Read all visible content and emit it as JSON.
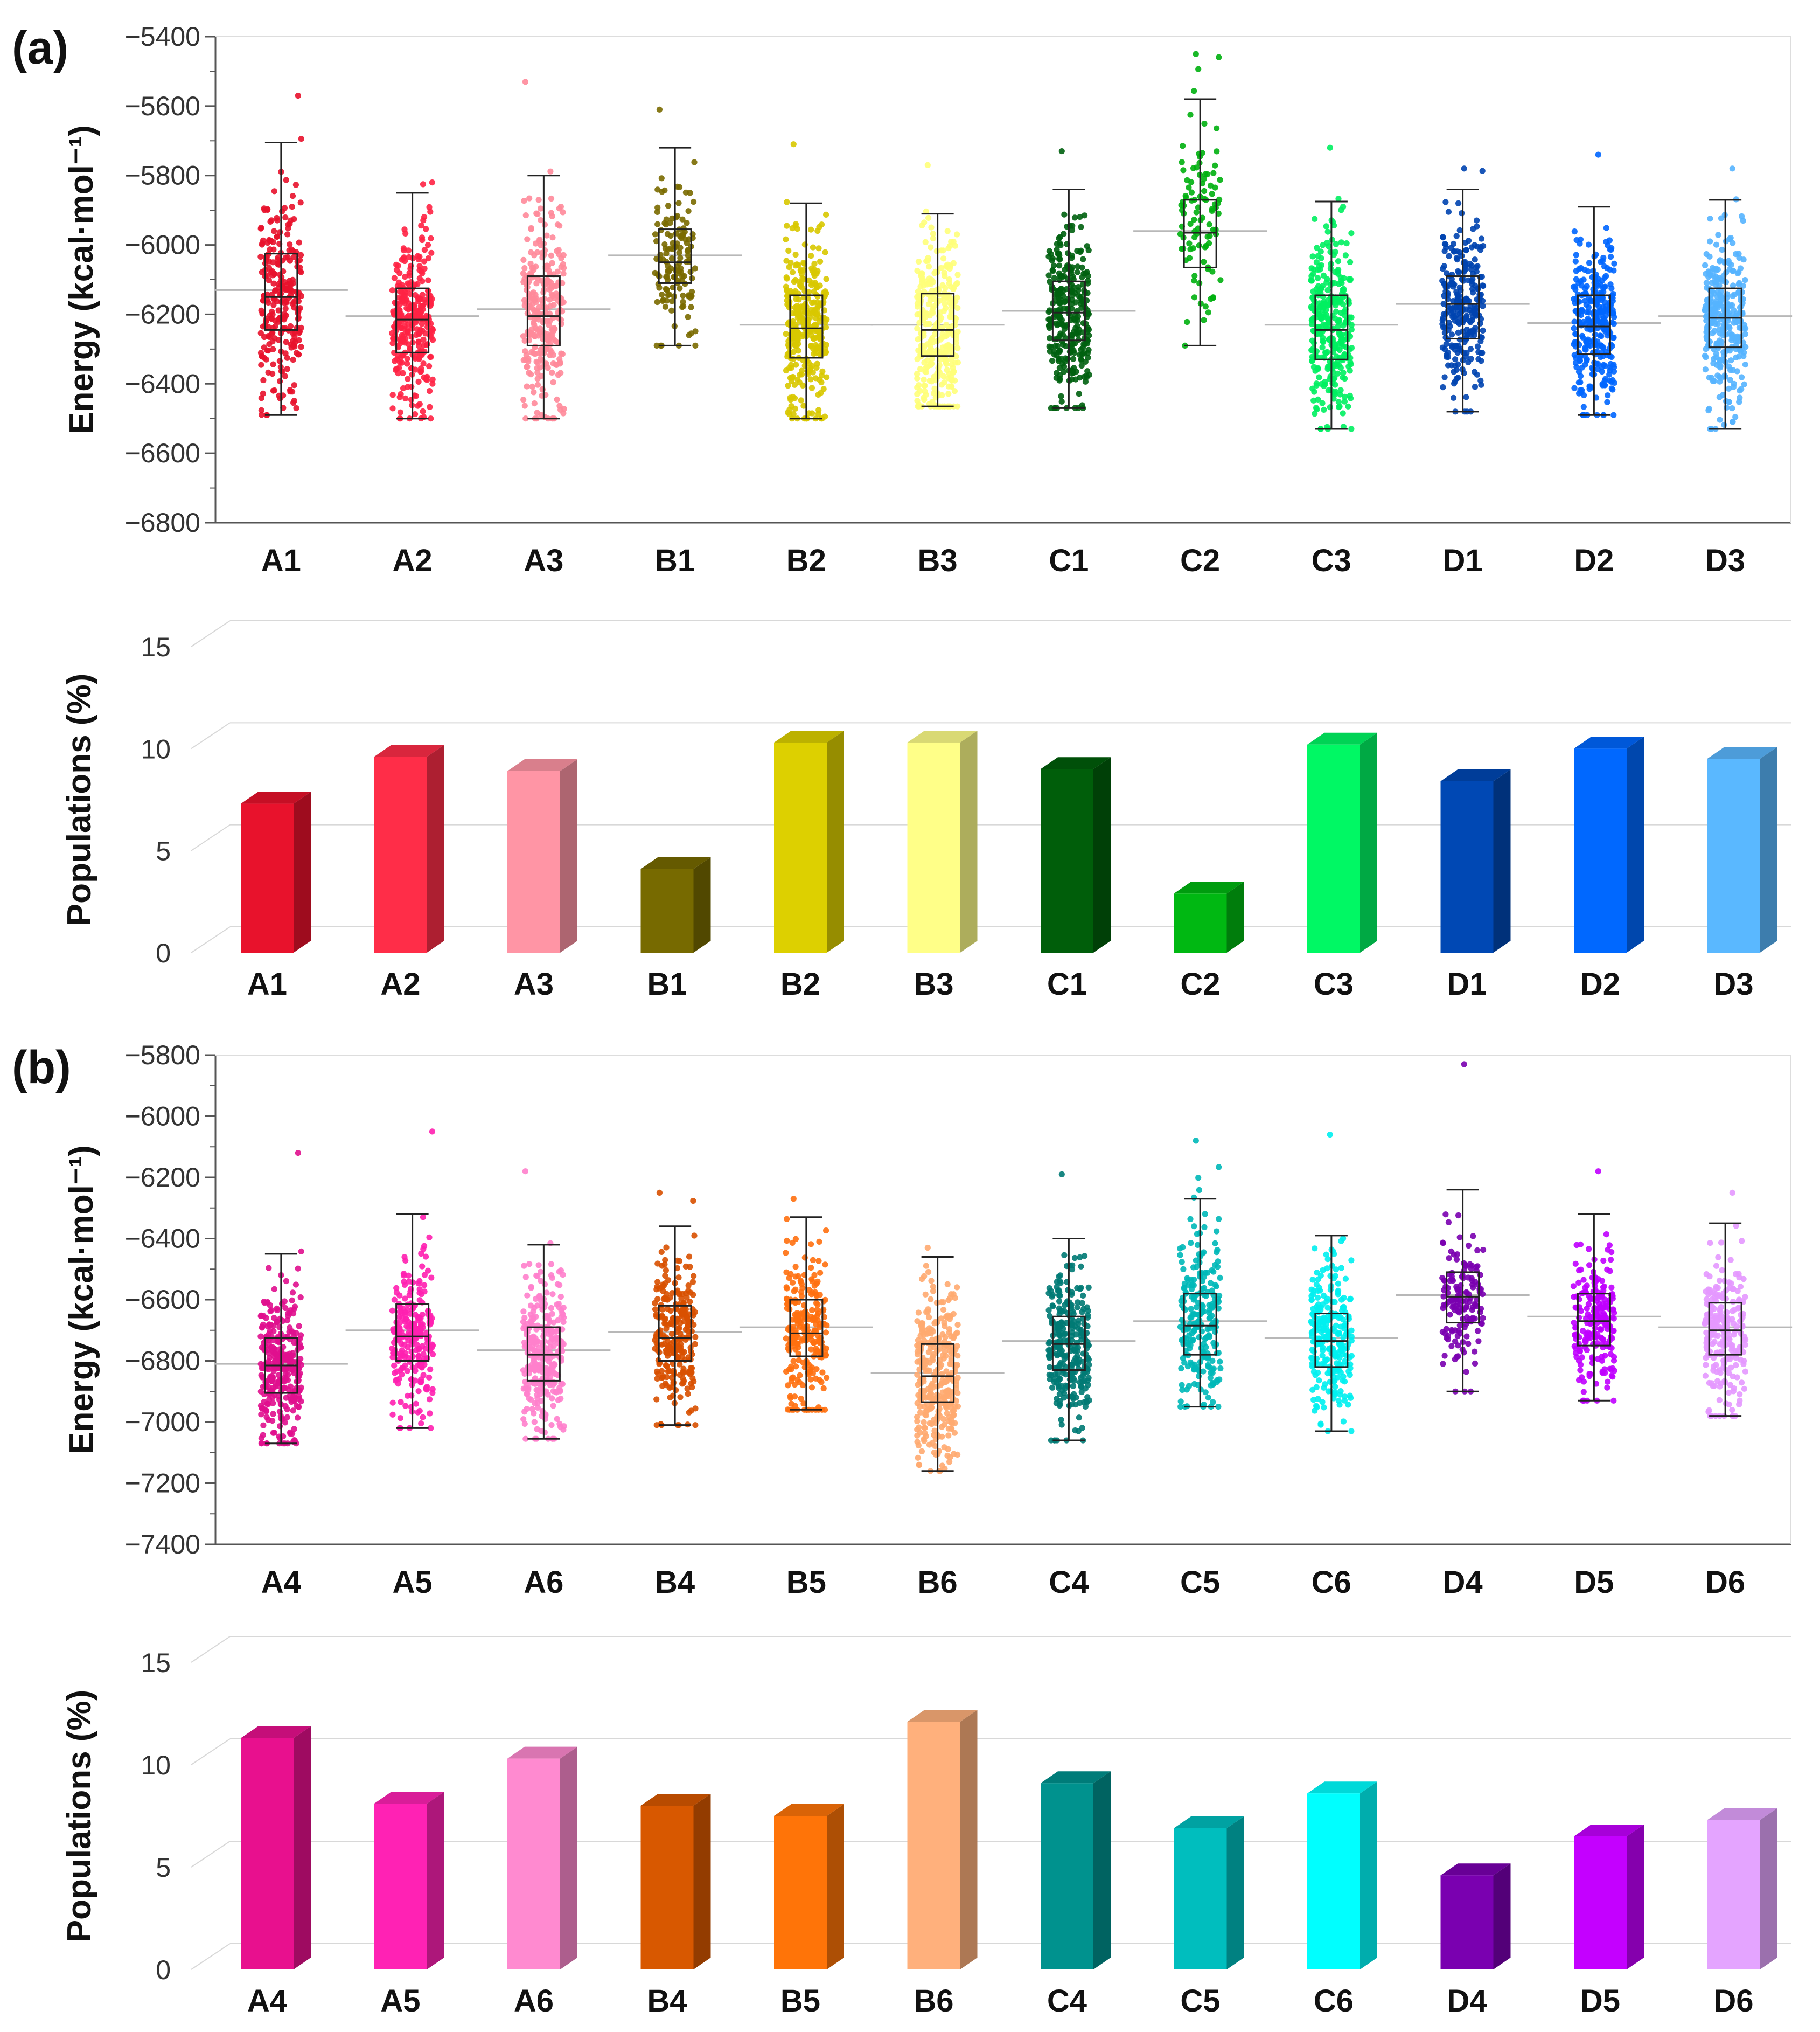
{
  "figure": {
    "panels": [
      {
        "label": "(a)"
      },
      {
        "label": "(b)"
      }
    ]
  },
  "chart_data": [
    {
      "type": "box",
      "panel": "(a)",
      "ylabel": "Energy (kcal·mol⁻¹)",
      "ylim": [
        -6800,
        -5400
      ],
      "yticks": [
        -5400,
        -5600,
        -5800,
        -6000,
        -6200,
        -6400,
        -6600,
        -6800
      ],
      "categories": [
        "A1",
        "A2",
        "A3",
        "B1",
        "B2",
        "B3",
        "C1",
        "C2",
        "C3",
        "D1",
        "D2",
        "D3"
      ],
      "colors": [
        "#e8122c",
        "#ff2244",
        "#ff8a9a",
        "#7a6a00",
        "#d8c800",
        "#ffff7a",
        "#006010",
        "#00b010",
        "#00f060",
        "#0044b0",
        "#0066ff",
        "#55b4ff"
      ],
      "points_per_group": [
        260,
        300,
        280,
        140,
        320,
        320,
        290,
        100,
        320,
        260,
        310,
        300
      ],
      "series": [
        {
          "name": "A1",
          "whisker_low": -6490,
          "q1": -6245,
          "median": -6150,
          "q3": -6025,
          "whisker_high": -5705,
          "mean": -6130,
          "min": -6490,
          "max": -5570
        },
        {
          "name": "A2",
          "whisker_low": -6500,
          "q1": -6310,
          "median": -6215,
          "q3": -6125,
          "whisker_high": -5850,
          "mean": -6205,
          "min": -6500,
          "max": -5820
        },
        {
          "name": "A3",
          "whisker_low": -6500,
          "q1": -6290,
          "median": -6205,
          "q3": -6090,
          "whisker_high": -5800,
          "mean": -6185,
          "min": -6500,
          "max": -5530
        },
        {
          "name": "B1",
          "whisker_low": -6290,
          "q1": -6110,
          "median": -6050,
          "q3": -5955,
          "whisker_high": -5720,
          "mean": -6030,
          "min": -6290,
          "max": -5610
        },
        {
          "name": "B2",
          "whisker_low": -6500,
          "q1": -6325,
          "median": -6240,
          "q3": -6145,
          "whisker_high": -5880,
          "mean": -6230,
          "min": -6500,
          "max": -5710
        },
        {
          "name": "B3",
          "whisker_low": -6465,
          "q1": -6320,
          "median": -6245,
          "q3": -6140,
          "whisker_high": -5910,
          "mean": -6230,
          "min": -6465,
          "max": -5770
        },
        {
          "name": "C1",
          "whisker_low": -6470,
          "q1": -6275,
          "median": -6195,
          "q3": -6105,
          "whisker_high": -5840,
          "mean": -6190,
          "min": -6470,
          "max": -5730
        },
        {
          "name": "C2",
          "whisker_low": -6290,
          "q1": -6065,
          "median": -5965,
          "q3": -5870,
          "whisker_high": -5580,
          "mean": -5960,
          "min": -6290,
          "max": -5450
        },
        {
          "name": "C3",
          "whisker_low": -6530,
          "q1": -6330,
          "median": -6245,
          "q3": -6145,
          "whisker_high": -5875,
          "mean": -6230,
          "min": -6530,
          "max": -5720
        },
        {
          "name": "D1",
          "whisker_low": -6480,
          "q1": -6270,
          "median": -6170,
          "q3": -6090,
          "whisker_high": -5840,
          "mean": -6170,
          "min": -6480,
          "max": -5780
        },
        {
          "name": "D2",
          "whisker_low": -6490,
          "q1": -6315,
          "median": -6235,
          "q3": -6145,
          "whisker_high": -5890,
          "mean": -6225,
          "min": -6490,
          "max": -5740
        },
        {
          "name": "D3",
          "whisker_low": -6530,
          "q1": -6295,
          "median": -6210,
          "q3": -6125,
          "whisker_high": -5870,
          "mean": -6205,
          "min": -6530,
          "max": -5780
        }
      ]
    },
    {
      "type": "bar",
      "panel": "(a)",
      "ylabel": "Populations (%)",
      "ylim": [
        0,
        15
      ],
      "yticks": [
        0,
        5,
        10,
        15
      ],
      "categories": [
        "A1",
        "A2",
        "A3",
        "B1",
        "B2",
        "B3",
        "C1",
        "C2",
        "C3",
        "D1",
        "D2",
        "D3"
      ],
      "values": [
        7.3,
        9.6,
        8.9,
        4.1,
        10.3,
        10.3,
        9.0,
        2.9,
        10.2,
        8.4,
        10.0,
        9.5
      ],
      "colors": [
        "#e8122c",
        "#ff2d48",
        "#ff95a5",
        "#776a00",
        "#ddd000",
        "#ffff88",
        "#005e0a",
        "#00b812",
        "#00f864",
        "#0048b4",
        "#0068ff",
        "#5ab8ff"
      ]
    },
    {
      "type": "box",
      "panel": "(b)",
      "ylabel": "Energy (kcal·mol⁻¹)",
      "ylim": [
        -7400,
        -5800
      ],
      "yticks": [
        -5800,
        -6000,
        -6200,
        -6400,
        -6600,
        -6800,
        -7000,
        -7200,
        -7400
      ],
      "categories": [
        "A4",
        "A5",
        "A6",
        "B4",
        "B5",
        "B6",
        "C4",
        "C5",
        "C6",
        "D4",
        "D5",
        "D6"
      ],
      "colors": [
        "#e0108e",
        "#ff20b0",
        "#ff80cc",
        "#d85000",
        "#ff7010",
        "#ffaa70",
        "#007a74",
        "#00b8b8",
        "#00f0f0",
        "#7a00b0",
        "#c000ff",
        "#e498ff"
      ],
      "points_per_group": [
        320,
        240,
        300,
        250,
        240,
        330,
        280,
        230,
        260,
        150,
        220,
        230
      ],
      "series": [
        {
          "name": "A4",
          "whisker_low": -7070,
          "q1": -6905,
          "median": -6815,
          "q3": -6725,
          "whisker_high": -6450,
          "mean": -6810,
          "min": -7070,
          "max": -6120
        },
        {
          "name": "A5",
          "whisker_low": -7020,
          "q1": -6800,
          "median": -6720,
          "q3": -6615,
          "whisker_high": -6320,
          "mean": -6700,
          "min": -7020,
          "max": -6050
        },
        {
          "name": "A6",
          "whisker_low": -7055,
          "q1": -6865,
          "median": -6780,
          "q3": -6690,
          "whisker_high": -6420,
          "mean": -6765,
          "min": -7055,
          "max": -6180
        },
        {
          "name": "B4",
          "whisker_low": -7010,
          "q1": -6800,
          "median": -6725,
          "q3": -6620,
          "whisker_high": -6360,
          "mean": -6705,
          "min": -7010,
          "max": -6250
        },
        {
          "name": "B5",
          "whisker_low": -6960,
          "q1": -6785,
          "median": -6710,
          "q3": -6600,
          "whisker_high": -6330,
          "mean": -6690,
          "min": -6960,
          "max": -6270
        },
        {
          "name": "B6",
          "whisker_low": -7160,
          "q1": -6935,
          "median": -6850,
          "q3": -6745,
          "whisker_high": -6460,
          "mean": -6840,
          "min": -7160,
          "max": -6430
        },
        {
          "name": "C4",
          "whisker_low": -7060,
          "q1": -6830,
          "median": -6745,
          "q3": -6655,
          "whisker_high": -6400,
          "mean": -6735,
          "min": -7060,
          "max": -6190
        },
        {
          "name": "C5",
          "whisker_low": -6950,
          "q1": -6780,
          "median": -6685,
          "q3": -6580,
          "whisker_high": -6270,
          "mean": -6670,
          "min": -6950,
          "max": -6080
        },
        {
          "name": "C6",
          "whisker_low": -7030,
          "q1": -6820,
          "median": -6735,
          "q3": -6645,
          "whisker_high": -6390,
          "mean": -6725,
          "min": -7030,
          "max": -6060
        },
        {
          "name": "D4",
          "whisker_low": -6900,
          "q1": -6675,
          "median": -6590,
          "q3": -6510,
          "whisker_high": -6240,
          "mean": -6585,
          "min": -6900,
          "max": -5830
        },
        {
          "name": "D5",
          "whisker_low": -6930,
          "q1": -6750,
          "median": -6670,
          "q3": -6580,
          "whisker_high": -6320,
          "mean": -6655,
          "min": -6930,
          "max": -6180
        },
        {
          "name": "D6",
          "whisker_low": -6980,
          "q1": -6780,
          "median": -6700,
          "q3": -6610,
          "whisker_high": -6350,
          "mean": -6690,
          "min": -6980,
          "max": -6250
        }
      ]
    },
    {
      "type": "bar",
      "panel": "(b)",
      "ylabel": "Populations (%)",
      "ylim": [
        0,
        15
      ],
      "yticks": [
        0,
        5,
        10,
        15
      ],
      "categories": [
        "A4",
        "A5",
        "A6",
        "B4",
        "B5",
        "B6",
        "C4",
        "C5",
        "C6",
        "D4",
        "D5",
        "D6"
      ],
      "values": [
        11.3,
        8.1,
        10.3,
        8.0,
        7.5,
        12.1,
        9.1,
        6.9,
        8.6,
        4.6,
        6.5,
        7.3
      ],
      "colors": [
        "#e8108e",
        "#ff22b4",
        "#ff8ad0",
        "#d85800",
        "#ff7408",
        "#ffb07c",
        "#00928e",
        "#00bebe",
        "#00ffff",
        "#7a00b0",
        "#c400ff",
        "#e4a4ff"
      ]
    }
  ]
}
